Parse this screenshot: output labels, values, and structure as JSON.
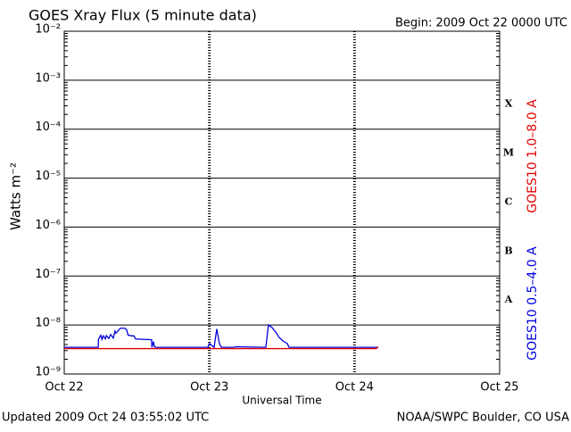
{
  "chart_data": {
    "type": "line",
    "title": "GOES Xray Flux (5 minute data)",
    "subtitle": "Begin:  2009 Oct 22 0000 UTC",
    "y_label": "Watts m⁻²",
    "x_label": "Universal Time",
    "footer_left": "Updated 2009 Oct 24 03:55:02 UTC",
    "footer_right": "NOAA/SWPC Boulder, CO USA",
    "y_scale": "log",
    "grid": true,
    "legend": "right",
    "xlim": [
      22,
      25
    ],
    "xticks": [
      {
        "value": 22,
        "label": "Oct 22"
      },
      {
        "value": 23,
        "label": "Oct 23"
      },
      {
        "value": 24,
        "label": "Oct 24"
      },
      {
        "value": 25,
        "label": "Oct 25"
      }
    ],
    "ylim": [
      1e-09,
      0.01
    ],
    "yticks": [
      {
        "value": 1e-09,
        "label": "10⁻⁹"
      },
      {
        "value": 1e-08,
        "label": "10⁻⁸"
      },
      {
        "value": 1e-07,
        "label": "10⁻⁷"
      },
      {
        "value": 1e-06,
        "label": "10⁻⁶"
      },
      {
        "value": 1e-05,
        "label": "10⁻⁵"
      },
      {
        "value": 0.0001,
        "label": "10⁻⁴"
      },
      {
        "value": 0.001,
        "label": "10⁻³"
      },
      {
        "value": 0.01,
        "label": "10⁻²"
      }
    ],
    "flare_classes": [
      {
        "label": "A",
        "value": 1e-08
      },
      {
        "label": "B",
        "value": 1e-07
      },
      {
        "label": "C",
        "value": 1e-06
      },
      {
        "label": "M",
        "value": 1e-05
      },
      {
        "label": "X",
        "value": 0.0001
      }
    ],
    "series": [
      {
        "name": "GOES10 1.0–8.0 A",
        "color": "#e00000",
        "x": [
          22.0,
          24.15,
          24.164
        ],
        "values": [
          3.3e-09,
          3.3e-09,
          3.6e-09
        ]
      },
      {
        "name": "GOES10 0.5–4.0 A",
        "color": "#0000e0",
        "x": [
          22.0,
          22.234,
          22.236,
          22.252,
          22.26,
          22.27,
          22.283,
          22.29,
          22.307,
          22.32,
          22.338,
          22.35,
          22.356,
          22.37,
          22.387,
          22.418,
          22.43,
          22.44,
          22.467,
          22.48,
          22.492,
          22.602,
          22.604,
          22.615,
          22.621,
          22.633,
          22.99,
          23.0,
          23.033,
          23.04,
          23.051,
          23.069,
          23.082,
          23.17,
          23.18,
          23.389,
          23.407,
          23.43,
          23.463,
          23.48,
          23.512,
          23.537,
          23.549,
          24.164
        ],
        "values": [
          3.5e-09,
          3.5e-09,
          5.1e-09,
          6.2e-09,
          5.1e-09,
          6e-09,
          5.2e-09,
          6.1e-09,
          5.3e-09,
          6.4e-09,
          5.4e-09,
          7.5e-09,
          6.8e-09,
          7.6e-09,
          8.6e-09,
          8.6e-09,
          8e-09,
          6.2e-09,
          6e-09,
          6e-09,
          5.2e-09,
          5e-09,
          3.5e-09,
          4.6e-09,
          3.6e-09,
          3.5e-09,
          3.5e-09,
          4.2e-09,
          3.5e-09,
          5e-09,
          8.3e-09,
          4.2e-09,
          3.5e-09,
          3.5e-09,
          3.6e-09,
          3.5e-09,
          1e-08,
          9e-09,
          6.8e-09,
          5.6e-09,
          4.6e-09,
          4.2e-09,
          3.5e-09,
          3.5e-09
        ]
      }
    ]
  }
}
